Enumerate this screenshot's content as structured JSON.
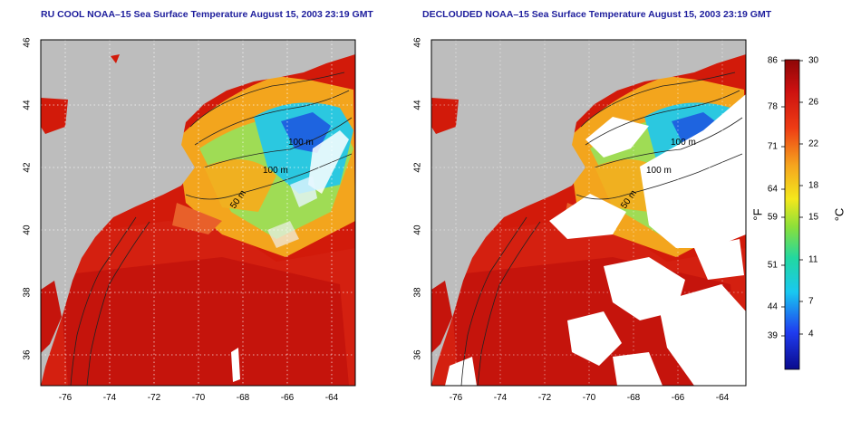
{
  "titles": {
    "left": "RU COOL NOAA–15 Sea Surface Temperature August 15, 2003 23:19 GMT",
    "right": "DECLOUDED NOAA–15 Sea Surface Temperature August 15, 2003 23:19 GMT"
  },
  "axes": {
    "lat_ticks": [
      "46",
      "44",
      "42",
      "40",
      "38",
      "36"
    ],
    "lon_ticks": [
      "-76",
      "-74",
      "-72",
      "-70",
      "-68",
      "-66",
      "-64"
    ]
  },
  "contours": {
    "labels": [
      "100 m",
      "100 m",
      "50 m"
    ]
  },
  "colorbar": {
    "fahrenheit_label": "°F",
    "celsius_label": "°C",
    "fahrenheit_ticks": [
      "86",
      "78",
      "71",
      "64",
      "59",
      "51",
      "44",
      "39"
    ],
    "celsius_ticks": [
      "30",
      "26",
      "22",
      "18",
      "15",
      "11",
      "7",
      "4"
    ]
  },
  "colors": {
    "land": "#bdbdbd",
    "warm": "#d21a0a",
    "hot": "#b80d0d",
    "cloud": "#ffffff",
    "title": "#1d1d9c"
  }
}
